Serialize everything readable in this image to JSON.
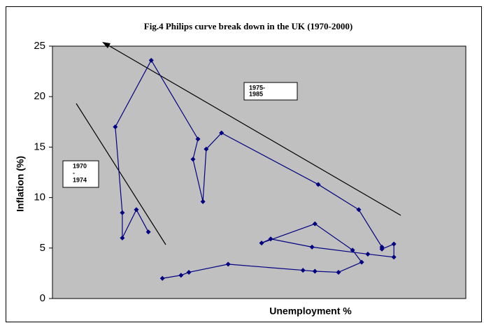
{
  "chart_data": {
    "type": "line",
    "title": "Fig.4 Philips curve break down in the UK (1970-2000)",
    "x_label": "Unemployment %",
    "y_label": "Inflation (%)",
    "annotations": [
      [
        "1975-",
        "1985"
      ],
      [
        "1970",
        "-",
        "1974"
      ]
    ],
    "xlim": [
      0,
      100
    ],
    "ylim": [
      0,
      25
    ],
    "yticks": [
      0,
      5,
      10,
      15,
      20,
      25
    ],
    "grid": false,
    "series": [
      {
        "color": "#000080",
        "x": [
          23.2,
          20.3,
          16.9,
          16.9,
          15.2,
          23.9,
          35.2,
          34.0,
          36.4,
          37.2,
          40.9,
          64.3,
          74.1,
          79.7,
          79.7,
          82.6,
          82.6,
          76.3,
          62.8,
          52.8,
          50.6,
          63.5,
          72.6,
          74.8,
          69.2,
          63.5,
          60.6,
          42.5,
          33.0,
          31.1,
          26.6
        ],
        "values": [
          6.6,
          8.8,
          6.0,
          8.5,
          17.0,
          23.6,
          15.8,
          13.8,
          9.6,
          14.8,
          16.4,
          11.3,
          8.8,
          5.1,
          4.9,
          5.4,
          4.1,
          4.4,
          5.1,
          5.9,
          5.5,
          7.4,
          4.8,
          3.6,
          2.6,
          2.7,
          2.8,
          3.4,
          2.6,
          2.3,
          2.0
        ]
      }
    ]
  }
}
